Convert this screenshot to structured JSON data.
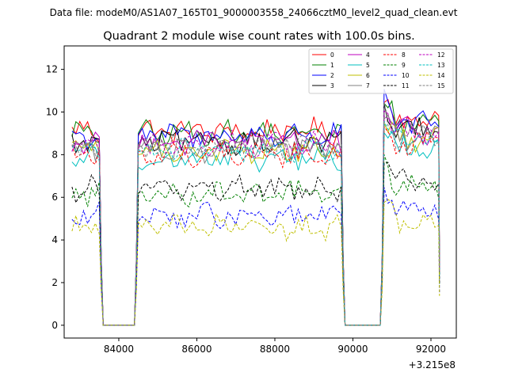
{
  "chart_data": {
    "type": "line",
    "suptitle": "Data file: modeM0/AS1A07_165T01_9000003558_24066cztM0_level2_quad_clean.evt",
    "title": "Quadrant 2 module wise count rates with 100.0s bins.",
    "xlabel": "",
    "ylabel": "",
    "x_offset_label": "+3.215e8",
    "xlim": [
      82600,
      92650
    ],
    "ylim": [
      -0.6,
      13.1
    ],
    "xticks": [
      84000,
      86000,
      88000,
      90000,
      92000
    ],
    "xtick_labels": [
      "84000",
      "86000",
      "88000",
      "90000",
      "92000"
    ],
    "yticks": [
      0,
      2,
      4,
      6,
      8,
      10,
      12
    ],
    "ytick_labels": [
      "0",
      "2",
      "4",
      "6",
      "8",
      "10",
      "12"
    ],
    "grid": false,
    "legend_position": "top-right",
    "segments": [
      {
        "x_start": 82800,
        "x_end": 83500,
        "bins": 8,
        "transition": "fall",
        "level": 1.0
      },
      {
        "x_start": 84500,
        "x_end": 89700,
        "bins": 53,
        "transition": "both",
        "level": 1.0
      },
      {
        "x_start": 90800,
        "x_end": 92200,
        "bins": 15,
        "transition": "rise",
        "level": 1.06
      }
    ],
    "gap_value": 0,
    "series": [
      {
        "name": "0",
        "color": "#ff0000",
        "style": "solid",
        "mean": 9.1
      },
      {
        "name": "1",
        "color": "#008000",
        "style": "solid",
        "mean": 9.0
      },
      {
        "name": "2",
        "color": "#0000ff",
        "style": "solid",
        "mean": 8.9
      },
      {
        "name": "3",
        "color": "#000000",
        "style": "solid",
        "mean": 8.6
      },
      {
        "name": "4",
        "color": "#bf00bf",
        "style": "solid",
        "mean": 8.6
      },
      {
        "name": "5",
        "color": "#00bfbf",
        "style": "solid",
        "mean": 7.8
      },
      {
        "name": "6",
        "color": "#bfbf00",
        "style": "solid",
        "mean": 8.2
      },
      {
        "name": "7",
        "color": "#808080",
        "style": "solid",
        "mean": 8.3
      },
      {
        "name": "8",
        "color": "#ff0000",
        "style": "dashed",
        "mean": 8.0
      },
      {
        "name": "9",
        "color": "#008000",
        "style": "dashed",
        "mean": 6.2
      },
      {
        "name": "10",
        "color": "#0000ff",
        "style": "dashed",
        "mean": 5.1
      },
      {
        "name": "11",
        "color": "#000000",
        "style": "dashed",
        "mean": 6.4
      },
      {
        "name": "12",
        "color": "#bf00bf",
        "style": "dashed",
        "mean": 8.5
      },
      {
        "name": "13",
        "color": "#00bfbf",
        "style": "dashed",
        "mean": 8.2
      },
      {
        "name": "14",
        "color": "#bfbf00",
        "style": "dashed",
        "mean": 4.6
      },
      {
        "name": "15",
        "color": "#808080",
        "style": "dashed",
        "mean": 8.4
      }
    ]
  }
}
